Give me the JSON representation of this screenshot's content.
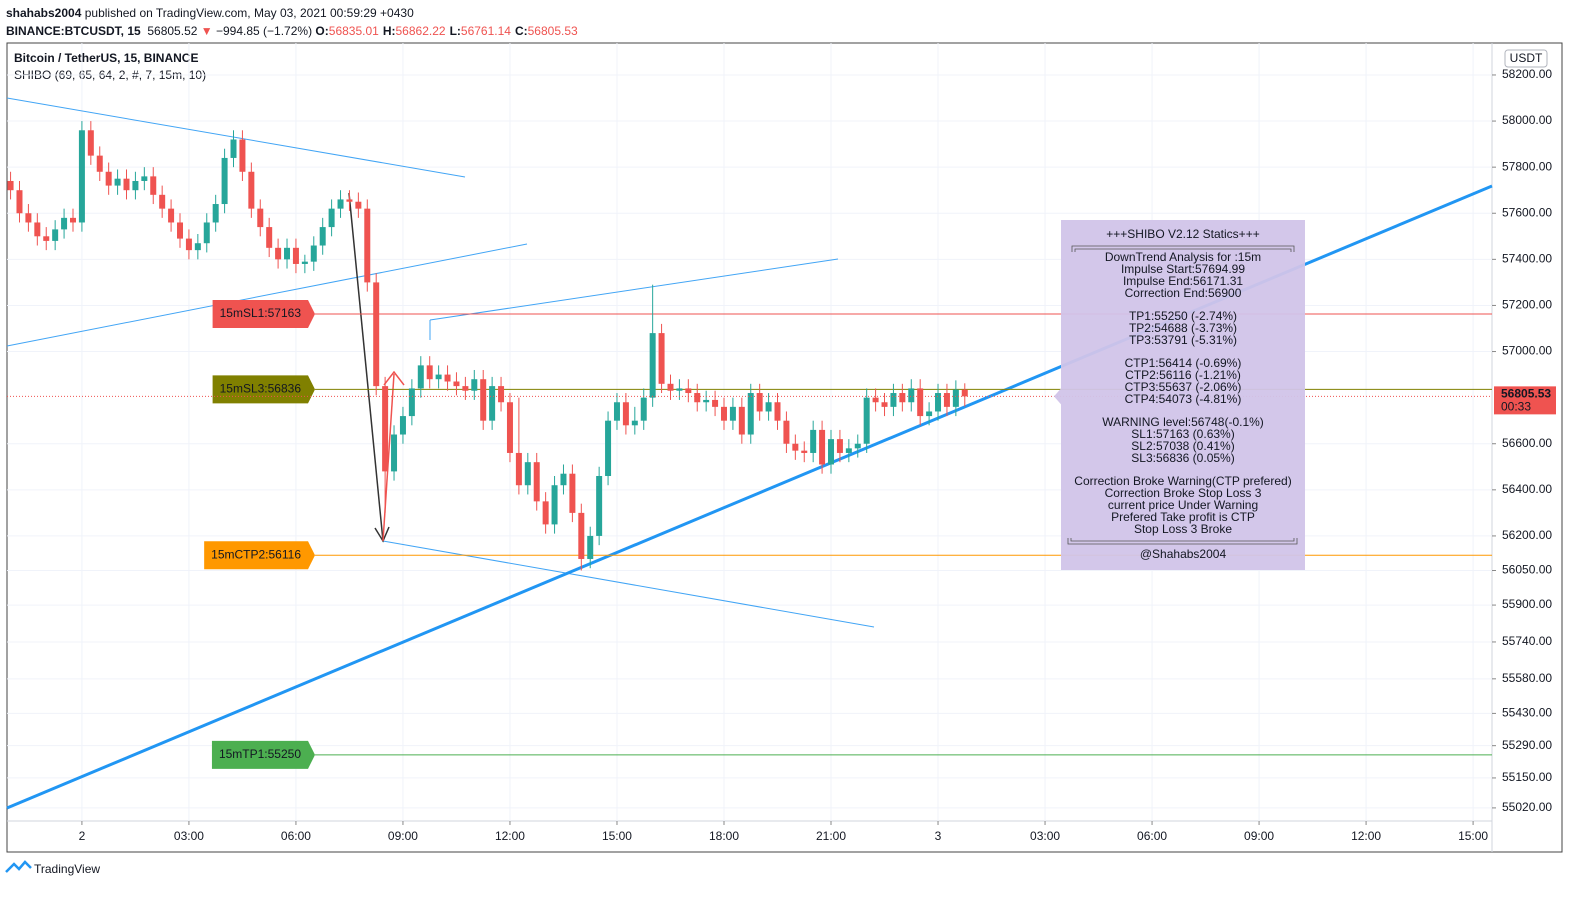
{
  "header": {
    "author": "shahabs2004",
    "published": "published on TradingView.com, May 03, 2021 00:59:29 +0430",
    "symbol": "BINANCE:BTCUSDT, 15",
    "price": "56805.52",
    "arrow": "▼",
    "change": "−994.85 (−1.72%)",
    "ohlc": [
      {
        "k": "O:",
        "v": "56835.01"
      },
      {
        "k": "H:",
        "v": "56862.22"
      },
      {
        "k": "L:",
        "v": "56761.14"
      },
      {
        "k": "C:",
        "v": "56805.53"
      }
    ]
  },
  "chart_data": {
    "type": "candlestick",
    "title": "Bitcoin / TetherUS, 15, BINANCE",
    "indicator": "SHIBO (69, 65, 64, 2, #, 7, 15m, 10)",
    "currency": "USDT",
    "up_color": "#26a69a",
    "down_color": "#ef5350",
    "xlim": [
      -2.1,
      39.53
    ],
    "xticks": [
      {
        "value": 0,
        "label": "2"
      },
      {
        "value": 3,
        "label": "03:00"
      },
      {
        "value": 6,
        "label": "06:00"
      },
      {
        "value": 9,
        "label": "09:00"
      },
      {
        "value": 12,
        "label": "12:00"
      },
      {
        "value": 15,
        "label": "15:00"
      },
      {
        "value": 18,
        "label": "18:00"
      },
      {
        "value": 21,
        "label": "21:00"
      },
      {
        "value": 24,
        "label": "3"
      },
      {
        "value": 27,
        "label": "03:00"
      },
      {
        "value": 30,
        "label": "06:00"
      },
      {
        "value": 33,
        "label": "09:00"
      },
      {
        "value": 36,
        "label": "12:00"
      },
      {
        "value": 39,
        "label": "15:00"
      }
    ],
    "ylim": [
      54833,
      58330
    ],
    "yticks": [
      {
        "value": 58200,
        "label": "58200.00"
      },
      {
        "value": 58000,
        "label": "58000.00"
      },
      {
        "value": 57800,
        "label": "57800.00"
      },
      {
        "value": 57600,
        "label": "57600.00"
      },
      {
        "value": 57400,
        "label": "57400.00"
      },
      {
        "value": 57200,
        "label": "57200.00"
      },
      {
        "value": 57000,
        "label": "57000.00"
      },
      {
        "value": 56600,
        "label": "56600.00"
      },
      {
        "value": 56400,
        "label": "56400.00"
      },
      {
        "value": 56200,
        "label": "56200.00"
      },
      {
        "value": 56050,
        "label": "56050.00"
      },
      {
        "value": 55900,
        "label": "55900.00"
      },
      {
        "value": 55740,
        "label": "55740.00"
      },
      {
        "value": 55580,
        "label": "55580.00"
      },
      {
        "value": 55430,
        "label": "55430.00"
      },
      {
        "value": 55290,
        "label": "55290.00"
      },
      {
        "value": 55150,
        "label": "55150.00"
      },
      {
        "value": 55020,
        "label": "55020.00"
      }
    ],
    "x": [
      -2,
      -1.75,
      -1.5,
      -1.25,
      -1,
      -0.75,
      -0.5,
      -0.25,
      0,
      0.25,
      0.5,
      0.75,
      1,
      1.25,
      1.5,
      1.75,
      2,
      2.25,
      2.5,
      2.75,
      3,
      3.25,
      3.5,
      3.75,
      4,
      4.25,
      4.5,
      4.75,
      5,
      5.25,
      5.5,
      5.75,
      6,
      6.25,
      6.5,
      6.75,
      7,
      7.25,
      7.5,
      7.75,
      8,
      8.25,
      8.5,
      8.75,
      9,
      9.25,
      9.5,
      9.75,
      10,
      10.25,
      10.5,
      10.75,
      11,
      11.25,
      11.5,
      11.75,
      12,
      12.25,
      12.5,
      12.75,
      13,
      13.25,
      13.5,
      13.75,
      14,
      14.25,
      14.5,
      14.75,
      15,
      15.25,
      15.5,
      15.75,
      16,
      16.25,
      16.5,
      16.75,
      17,
      17.25,
      17.5,
      17.75,
      18,
      18.25,
      18.5,
      18.75,
      19,
      19.25,
      19.5,
      19.75,
      20,
      20.25,
      20.5,
      20.75,
      21,
      21.25,
      21.5,
      21.75,
      22,
      22.25,
      22.5,
      22.75,
      23,
      23.25,
      23.5,
      23.75,
      24,
      24.25,
      24.5,
      24.75
    ],
    "open": [
      57740,
      57700,
      57600,
      57560,
      57500,
      57480,
      57530,
      57580,
      57560,
      57960,
      57850,
      57780,
      57720,
      57750,
      57700,
      57740,
      57760,
      57680,
      57620,
      57560,
      57490,
      57440,
      57470,
      57560,
      57640,
      57840,
      57920,
      57780,
      57620,
      57540,
      57450,
      57400,
      57450,
      57380,
      57390,
      57460,
      57540,
      57620,
      57660,
      57650,
      57620,
      57300,
      56850,
      56480,
      56640,
      56720,
      56840,
      56940,
      56880,
      56900,
      56870,
      56850,
      56830,
      56880,
      56700,
      56850,
      56780,
      56560,
      56420,
      56520,
      56350,
      56250,
      56420,
      56470,
      56300,
      56100,
      56200,
      56460,
      56700,
      56780,
      56680,
      56700,
      56800,
      57080,
      56860,
      56830,
      56840,
      56820,
      56780,
      56790,
      56760,
      56700,
      56760,
      56640,
      56820,
      56740,
      56780,
      56700,
      56600,
      56570,
      56560,
      56660,
      56510,
      56620,
      56560,
      56580,
      56600,
      56800,
      56780,
      56760,
      56820,
      56780,
      56840,
      56720,
      56740,
      56820,
      56760,
      56835.01
    ],
    "high": [
      57780,
      57740,
      57640,
      57600,
      57540,
      57570,
      57620,
      57620,
      58000,
      58000,
      57890,
      57820,
      57790,
      57790,
      57780,
      57800,
      57800,
      57720,
      57660,
      57600,
      57530,
      57510,
      57600,
      57680,
      57880,
      57960,
      57960,
      57820,
      57660,
      57580,
      57490,
      57490,
      57490,
      57420,
      57500,
      57580,
      57660,
      57700,
      57700,
      57690,
      57660,
      57340,
      56890,
      56680,
      56760,
      56880,
      56980,
      56980,
      56940,
      56940,
      56910,
      56890,
      56920,
      56920,
      56890,
      56890,
      56820,
      56800,
      56560,
      56560,
      56390,
      56460,
      56510,
      56510,
      56340,
      56240,
      56500,
      56740,
      56820,
      56820,
      56760,
      56840,
      57290,
      57120,
      56900,
      56880,
      56880,
      56860,
      56830,
      56830,
      56800,
      56800,
      56800,
      56860,
      56860,
      56820,
      56820,
      56740,
      56640,
      56610,
      56700,
      56700,
      56660,
      56660,
      56620,
      56640,
      56840,
      56840,
      56820,
      56860,
      56860,
      56880,
      56880,
      56780,
      56860,
      56860,
      56875,
      56862.22
    ],
    "low": [
      57660,
      57560,
      57520,
      57460,
      57440,
      57440,
      57490,
      57520,
      57520,
      57810,
      57740,
      57680,
      57680,
      57660,
      57660,
      57700,
      57640,
      57580,
      57520,
      57450,
      57400,
      57400,
      57430,
      57520,
      57600,
      57800,
      57740,
      57580,
      57500,
      57410,
      57360,
      57360,
      57340,
      57340,
      57350,
      57420,
      57500,
      57580,
      57610,
      57580,
      57260,
      56810,
      56300,
      56440,
      56600,
      56680,
      56800,
      56840,
      56840,
      56830,
      56810,
      56790,
      56790,
      56660,
      56660,
      56740,
      56520,
      56380,
      56380,
      56310,
      56210,
      56210,
      56380,
      56260,
      56050,
      56060,
      56160,
      56420,
      56660,
      56640,
      56640,
      56660,
      56760,
      56820,
      56790,
      56790,
      56780,
      56740,
      56740,
      56720,
      56660,
      56660,
      56600,
      56600,
      56700,
      56700,
      56660,
      56560,
      56530,
      56520,
      56520,
      56470,
      56470,
      56520,
      56520,
      56540,
      56560,
      56740,
      56720,
      56720,
      56740,
      56740,
      56680,
      56680,
      56700,
      56720,
      56720,
      56761.14
    ],
    "close": [
      57700,
      57600,
      57560,
      57500,
      57480,
      57530,
      57580,
      57560,
      57960,
      57850,
      57780,
      57720,
      57750,
      57700,
      57740,
      57760,
      57680,
      57620,
      57560,
      57490,
      57440,
      57470,
      57560,
      57640,
      57840,
      57920,
      57780,
      57620,
      57540,
      57450,
      57400,
      57450,
      57380,
      57390,
      57460,
      57540,
      57620,
      57660,
      57650,
      57620,
      57300,
      56850,
      56480,
      56640,
      56720,
      56840,
      56940,
      56880,
      56900,
      56870,
      56850,
      56830,
      56880,
      56700,
      56850,
      56780,
      56560,
      56420,
      56520,
      56350,
      56250,
      56420,
      56470,
      56300,
      56100,
      56200,
      56460,
      56700,
      56780,
      56680,
      56700,
      56800,
      57080,
      56860,
      56830,
      56840,
      56820,
      56780,
      56790,
      56760,
      56700,
      56760,
      56640,
      56820,
      56740,
      56780,
      56700,
      56600,
      56570,
      56560,
      56660,
      56510,
      56620,
      56560,
      56580,
      56600,
      56800,
      56780,
      56760,
      56820,
      56780,
      56840,
      56720,
      56740,
      56820,
      56760,
      56835.01,
      56805.53
    ],
    "countdown": "00:33",
    "levels": [
      {
        "label": "15mSL1:57163",
        "value": 57163,
        "color": "#ef5350",
        "text_color": "#7a1a18"
      },
      {
        "label": "15mSL3:56836",
        "value": 56836,
        "color": "#808000",
        "text_color": "#2a2a00"
      },
      {
        "label": "15mCTP2:56116",
        "value": 56116,
        "color": "#ff9800",
        "text_color": "#5a3300"
      },
      {
        "label": "15mTP1:55250",
        "value": 55250,
        "color": "#4caf50",
        "text_color": "#0d3d10"
      }
    ],
    "panel": {
      "title": "+++SHIBO V2.12 Statics+++",
      "groups": [
        [
          "DownTrend Analysis for :15m",
          "Impulse Start:57694.99",
          "Impulse End:56171.31",
          "Correction End:56900"
        ],
        [
          "TP1:55250 (-2.74%)",
          "TP2:54688 (-3.73%)",
          "TP3:53791 (-5.31%)"
        ],
        [
          "CTP1:56414 (-0.69%)",
          "CTP2:56116 (-1.21%)",
          "CTP3:55637 (-2.06%)",
          "CTP4:54073 (-4.81%)"
        ],
        [
          "WARNING level:56748(-0.1%)",
          "SL1:57163 (0.63%)",
          "SL2:57038 (0.41%)",
          "SL3:56836 (0.05%)"
        ],
        [
          "Correction Broke Warning(CTP prefered)",
          "Correction Broke Stop Loss 3",
          "current price Under Warning",
          "Prefered Take profit is CTP",
          "Stop Loss 3 Broke"
        ]
      ],
      "footer": "@Shahabs2004"
    }
  },
  "footer": "TradingView"
}
